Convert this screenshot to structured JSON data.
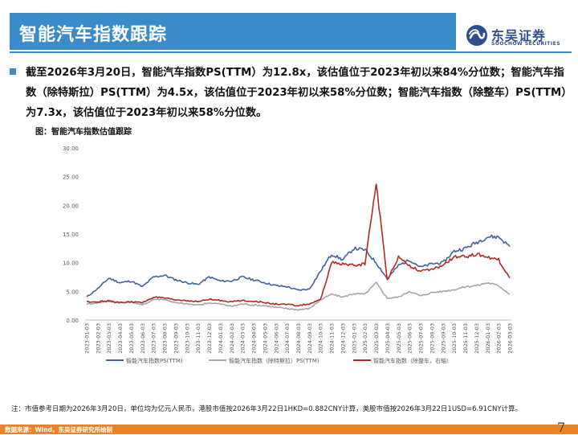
{
  "header": {
    "title": "智能汽车指数跟踪",
    "logo_cn": "东吴证券",
    "logo_en": "SOOCHOW SECURITIES",
    "brand_color": "#3b8bc9"
  },
  "summary": "截至2026年3月20日，智能汽车指数PS(TTM）为12.8x，该估值位于2023年初以来84%分位数；智能汽车指数（除特斯拉）PS(TTM）为4.5x，该估值位于2023年初以来58%分位数；智能汽车指数（除整车）PS(TTM）为7.3x，该估值位于2023年初以来58%分位数。",
  "figure_caption": "图：智能汽车指数估值跟踪",
  "chart_data": {
    "type": "line",
    "title": "图：智能汽车指数估值跟踪",
    "ylim": [
      0,
      30
    ],
    "y_ticks": [
      "0.00",
      "5.00",
      "10.00",
      "15.00",
      "20.00",
      "25.00",
      "30.00"
    ],
    "x_categories": [
      "2023-01-03",
      "2023-02-03",
      "2023-03-03",
      "2023-04-03",
      "2023-05-03",
      "2023-06-03",
      "2023-07-03",
      "2023-08-03",
      "2023-09-03",
      "2023-10-03",
      "2023-11-03",
      "2023-12-03",
      "2024-01-03",
      "2024-02-03",
      "2024-03-03",
      "2024-04-03",
      "2024-05-03",
      "2024-06-03",
      "2024-07-03",
      "2024-08-03",
      "2024-09-03",
      "2024-10-03",
      "2024-11-03",
      "2024-12-03",
      "2025-01-03",
      "2025-02-03",
      "2025-03-03",
      "2025-04-03",
      "2025-05-03",
      "2025-06-03",
      "2025-07-03",
      "2025-08-03",
      "2025-09-03",
      "2025-10-03",
      "2025-11-03",
      "2025-12-03",
      "2026-01-03",
      "2026-02-03",
      "2026-03-03"
    ],
    "series": [
      {
        "name": "智能汽车指数PS(TTM)",
        "color": "#41639b",
        "values": [
          4.0,
          5.5,
          7.3,
          6.5,
          6.8,
          5.8,
          7.5,
          7.8,
          7.0,
          6.5,
          6.2,
          7.5,
          6.8,
          6.8,
          7.5,
          7.0,
          6.5,
          6.0,
          5.8,
          5.2,
          5.4,
          8.5,
          11.5,
          10.5,
          12.5,
          12.2,
          10.0,
          7.2,
          9.5,
          10.5,
          9.2,
          9.8,
          10.0,
          12.0,
          12.5,
          13.5,
          14.5,
          14.5,
          12.8
        ]
      },
      {
        "name": "智能汽车指数（除特斯拉）PS(TTM)",
        "color": "#a6a6a6",
        "values": [
          2.8,
          3.0,
          3.4,
          3.0,
          3.2,
          2.6,
          3.6,
          3.6,
          3.0,
          2.8,
          2.6,
          3.0,
          2.8,
          2.4,
          2.8,
          2.6,
          2.5,
          2.2,
          2.0,
          1.8,
          2.0,
          3.5,
          4.5,
          4.0,
          4.6,
          4.5,
          6.5,
          3.8,
          4.0,
          5.0,
          4.2,
          4.8,
          5.0,
          5.3,
          5.8,
          6.0,
          6.5,
          6.0,
          4.5
        ]
      },
      {
        "name": "智能汽车指数（除整车，右轴）",
        "color": "#b22a24",
        "values": [
          3.2,
          3.2,
          3.3,
          3.0,
          3.2,
          3.0,
          4.0,
          3.8,
          3.5,
          3.4,
          3.2,
          3.6,
          3.4,
          3.2,
          3.4,
          3.3,
          3.0,
          2.8,
          2.7,
          2.5,
          2.8,
          3.5,
          10.0,
          9.8,
          9.5,
          9.8,
          24.0,
          7.0,
          11.0,
          9.5,
          8.5,
          8.8,
          9.5,
          11.0,
          11.0,
          11.5,
          11.0,
          10.5,
          7.3
        ]
      }
    ]
  },
  "note": "注：市值参考日期为2026年3月20日，单位均为亿元人民币，港股市值按2026年3月22日1HKD=0.882CNY计算，美股市值按2026年3月22日1USD=6.91CNY计算。",
  "source": "数据来源：Wind，东吴证券研究所绘制",
  "page_number": "7"
}
